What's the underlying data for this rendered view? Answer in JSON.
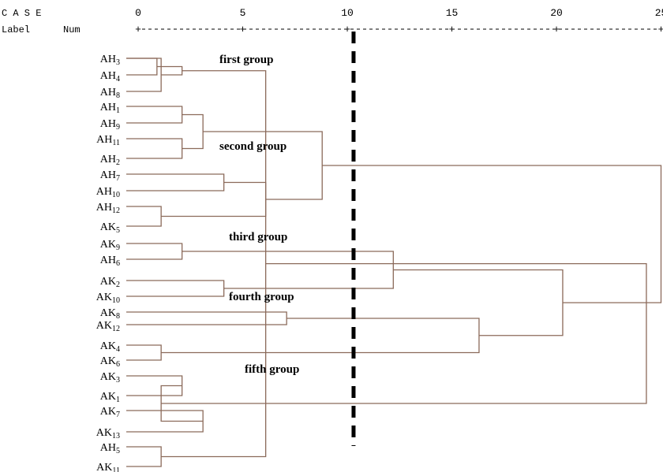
{
  "header": {
    "case_label": "C A S E",
    "label_col": "Label",
    "num_col": "Num",
    "ticks": [
      "0",
      "5",
      "10",
      "15",
      "20",
      "25"
    ],
    "tick_values": [
      0,
      5,
      10,
      15,
      20,
      25
    ]
  },
  "cut_value": 10.3,
  "leaves": [
    {
      "base": "AH",
      "sub": "3"
    },
    {
      "base": "AH",
      "sub": "4"
    },
    {
      "base": "AH",
      "sub": "8"
    },
    {
      "base": "AH",
      "sub": "1"
    },
    {
      "base": "AH",
      "sub": "9"
    },
    {
      "base": "AH",
      "sub": "11"
    },
    {
      "base": "AH",
      "sub": "2"
    },
    {
      "base": "AH",
      "sub": "7"
    },
    {
      "base": "AH",
      "sub": "10"
    },
    {
      "base": "AH",
      "sub": "12"
    },
    {
      "base": "AK",
      "sub": "5"
    },
    {
      "base": "AK",
      "sub": "9"
    },
    {
      "base": "AH",
      "sub": "6"
    },
    {
      "base": "AK",
      "sub": "2"
    },
    {
      "base": "AK",
      "sub": "10"
    },
    {
      "base": "AK",
      "sub": "8"
    },
    {
      "base": "AK",
      "sub": "12"
    },
    {
      "base": "AK",
      "sub": "4"
    },
    {
      "base": "AK",
      "sub": "6"
    },
    {
      "base": "AK",
      "sub": "3"
    },
    {
      "base": "AK",
      "sub": "1"
    },
    {
      "base": "AK",
      "sub": "7"
    },
    {
      "base": "AK",
      "sub": "13"
    },
    {
      "base": "AH",
      "sub": "5"
    },
    {
      "base": "AK",
      "sub": "11"
    }
  ],
  "merges": [
    [
      0,
      1,
      0.9
    ],
    [
      2,
      0,
      1.1
    ],
    [
      3,
      4,
      2.1
    ],
    [
      5,
      6,
      2.1
    ],
    [
      7,
      8,
      4.1
    ],
    [
      9,
      10,
      1.1
    ],
    [
      11,
      12,
      2.1
    ],
    [
      13,
      14,
      4.1
    ],
    [
      15,
      16,
      7.1
    ],
    [
      17,
      18,
      1.1
    ],
    [
      19,
      20,
      2.1
    ],
    [
      21,
      22,
      3.1
    ],
    [
      23,
      24,
      1.1
    ],
    [
      25,
      26,
      2.1
    ],
    [
      27,
      28,
      3.1
    ],
    [
      29,
      30,
      6.1
    ],
    [
      31,
      32,
      12.2
    ],
    [
      33,
      34,
      16.3
    ],
    [
      35,
      36,
      1.1
    ],
    [
      37,
      38,
      6.1
    ],
    [
      39,
      40,
      8.8
    ],
    [
      41,
      42,
      20.3
    ],
    [
      43,
      44,
      24.3
    ],
    [
      45,
      46,
      25
    ]
  ],
  "groups": [
    {
      "label": "first group"
    },
    {
      "label": "second group"
    },
    {
      "label": "third group"
    },
    {
      "label": "fourth group"
    },
    {
      "label": "fifth group"
    }
  ]
}
